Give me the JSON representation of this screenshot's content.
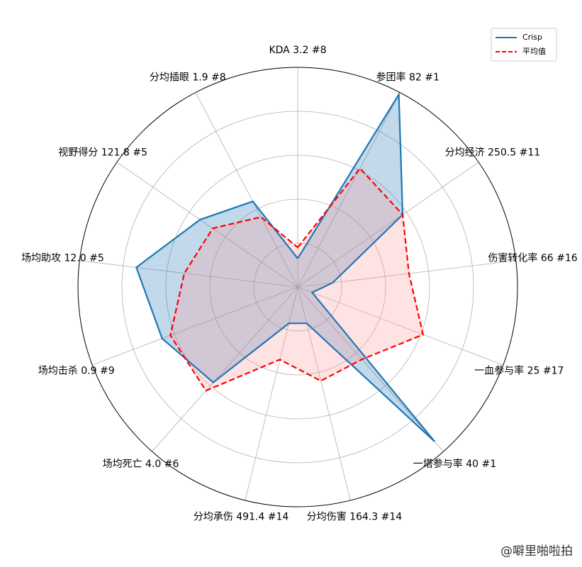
{
  "chart_data": {
    "type": "radar",
    "categories": [
      "KDA 3.2 #8",
      "参团率 82 #1",
      "分均经济 250.5 #11",
      "伤害转化率 66 #16",
      "一血参与率 25 #17",
      "一塔参与率 40 #1",
      "分均伤害 164.3 #14",
      "分均承伤 491.4 #14",
      "场均死亡 4.0 #6",
      "场均击杀 0.9 #9",
      "场均助攻 12.0 #5",
      "视野得分 121.8 #5",
      "分均插眼 1.9 #8"
    ],
    "series": [
      {
        "name": "Crisp",
        "color": "#1f77b4",
        "linestyle": "solid",
        "values": [
          0.13,
          0.99,
          0.58,
          0.16,
          0.07,
          0.94,
          0.17,
          0.17,
          0.58,
          0.66,
          0.74,
          0.54,
          0.44
        ]
      },
      {
        "name": "平均值",
        "color": "#ff0000",
        "linestyle": "dashed",
        "values": [
          0.18,
          0.61,
          0.58,
          0.51,
          0.61,
          0.44,
          0.44,
          0.34,
          0.63,
          0.62,
          0.52,
          0.47,
          0.36
        ]
      }
    ],
    "ylim": [
      0,
      1
    ],
    "yticks": [
      0.2,
      0.4,
      0.6,
      0.8
    ],
    "grid": true,
    "legend": "upper right",
    "watermark": "@噼里啪啦拍"
  }
}
